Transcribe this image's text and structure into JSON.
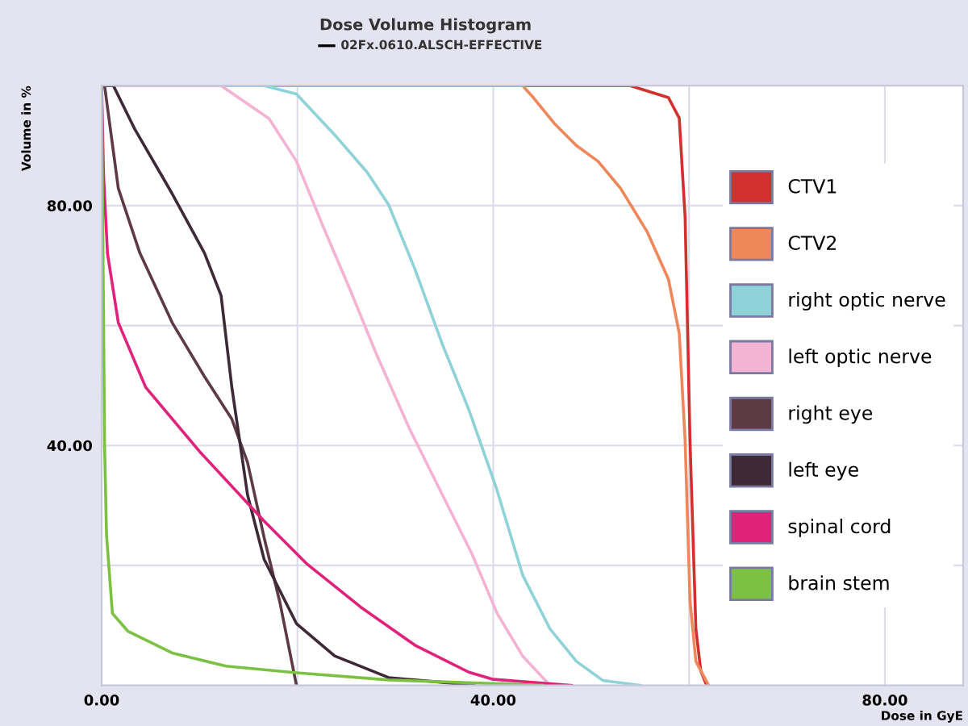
{
  "chart_data": {
    "type": "line",
    "title": "Dose Volume Histogram",
    "subtitle": "02Fx.0610.ALSCH-EFFECTIVE",
    "xlabel": "Dose in GyE",
    "ylabel": "Volume in %",
    "xlim": [
      0,
      88
    ],
    "xticks": [
      {
        "value": 0,
        "label": "0.00"
      },
      {
        "value": 20,
        "label": null
      },
      {
        "value": 40,
        "label": "40.00"
      },
      {
        "value": 60,
        "label": null
      },
      {
        "value": 80,
        "label": "80.00"
      }
    ],
    "ylim": [
      0,
      100
    ],
    "yticks": [
      {
        "value": 20,
        "label": null
      },
      {
        "value": 40,
        "label": "40.00"
      },
      {
        "value": 60,
        "label": null
      },
      {
        "value": 80,
        "label": "80.00"
      }
    ],
    "grid": true,
    "legend": "right",
    "marker": "none",
    "line_style": "solid",
    "series": [
      {
        "name": "CTV1",
        "color": "#d32f2f",
        "x": [
          0,
          54,
          57.9,
          59,
          59.6,
          60.1,
          60.7,
          61.2,
          61.8
        ],
        "values": [
          100,
          100,
          98,
          94.6,
          78,
          40.8,
          9.4,
          2.4,
          0
        ]
      },
      {
        "name": "CTV2",
        "color": "#f0875a",
        "x": [
          0,
          43,
          44.1,
          46.3,
          48.5,
          50.7,
          53,
          55.7,
          57.9,
          59,
          59.6,
          60.1,
          60.7,
          62
        ],
        "values": [
          100,
          100,
          98,
          93.6,
          90,
          87.4,
          82.9,
          75.7,
          67.7,
          58.7,
          40.8,
          14,
          4,
          0
        ]
      },
      {
        "name": "right optic nerve",
        "color": "#8fd3d8",
        "x": [
          0,
          16.6,
          19.9,
          23.8,
          27.1,
          29.3,
          32,
          34.8,
          37.5,
          40.3,
          43,
          45.8,
          48.5,
          51.2,
          55
        ],
        "values": [
          100,
          100,
          98.6,
          91.8,
          85.6,
          80.2,
          69.4,
          56.9,
          46,
          33,
          18.4,
          9.4,
          4,
          0.8,
          0
        ]
      },
      {
        "name": "left optic nerve",
        "color": "#f5b3d3",
        "x": [
          0,
          12.2,
          17.1,
          19.9,
          22.6,
          25.4,
          28.1,
          31.5,
          34.8,
          37.8,
          40.4,
          43,
          45.8
        ],
        "values": [
          100,
          100,
          94.5,
          87.4,
          76.6,
          65.9,
          55.1,
          42.6,
          31.8,
          22,
          12,
          4.9,
          0
        ]
      },
      {
        "name": "right eye",
        "color": "#5e3a44",
        "x": [
          0,
          0.3,
          1.7,
          3.9,
          7.2,
          10.5,
          13.3,
          14.9,
          16.6,
          18.2,
          19.3,
          19.9
        ],
        "values": [
          100,
          100,
          82.9,
          72.1,
          60.5,
          51.5,
          44.4,
          37.2,
          24.6,
          13.9,
          4.9,
          0
        ]
      },
      {
        "name": "left eye",
        "color": "#3e2a36",
        "x": [
          0,
          1.2,
          3.4,
          7.2,
          10.5,
          12.2,
          13.3,
          14.9,
          16.6,
          19.9,
          23.8,
          29.3,
          34.8,
          38
        ],
        "values": [
          100,
          100,
          92.7,
          82,
          72.1,
          65,
          49.7,
          31.8,
          21,
          10.3,
          4.9,
          1.3,
          0.5,
          0
        ]
      },
      {
        "name": "spinal cord",
        "color": "#e0227a",
        "x": [
          0,
          0.2,
          0.6,
          1.7,
          4.5,
          10,
          16.6,
          21,
          26.5,
          32,
          37.5,
          40,
          48
        ],
        "values": [
          100,
          85,
          72,
          60.5,
          49.7,
          39,
          27.4,
          20.2,
          13,
          6.7,
          2.2,
          1,
          0
        ]
      },
      {
        "name": "brain stem",
        "color": "#7cc142",
        "x": [
          0,
          0.3,
          0.5,
          1.1,
          2.7,
          7.2,
          12.7,
          19.9,
          29.3,
          45
        ],
        "values": [
          100,
          40,
          25,
          12,
          9,
          5.4,
          3.2,
          2.1,
          0.9,
          0
        ]
      }
    ]
  }
}
